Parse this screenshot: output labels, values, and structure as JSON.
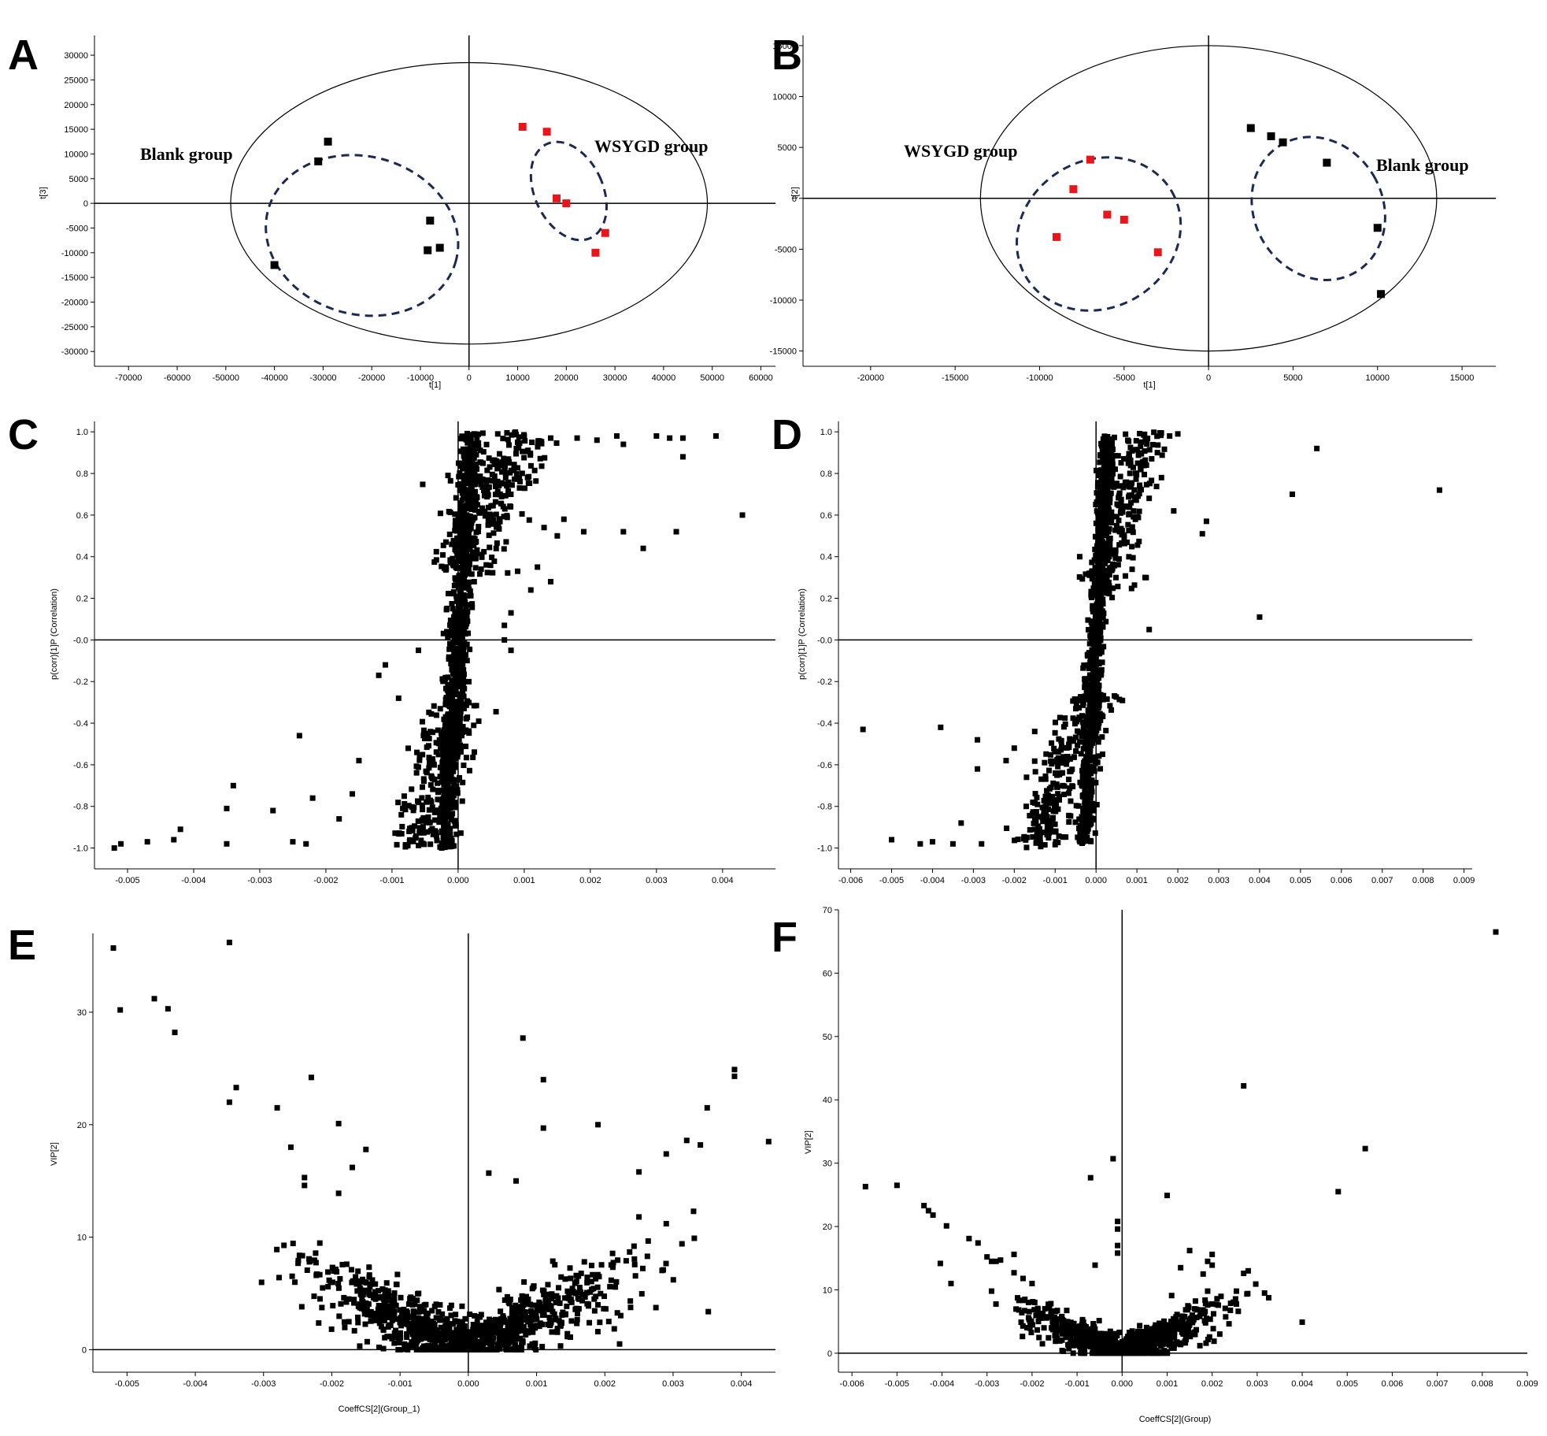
{
  "chart_data": [
    {
      "panel": "A",
      "type": "scatter",
      "xlabel": "t[1]",
      "ylabel": "t[3]",
      "xlim": [
        -77000,
        63000
      ],
      "ylim": [
        -33000,
        34000
      ],
      "xticks": [
        -70000,
        -60000,
        -50000,
        -40000,
        -30000,
        -20000,
        -10000,
        0,
        10000,
        20000,
        30000,
        40000,
        50000,
        60000
      ],
      "yticks": [
        -30000,
        -25000,
        -20000,
        -15000,
        -10000,
        -5000,
        0,
        5000,
        10000,
        15000,
        20000,
        25000,
        30000
      ],
      "ellipse": {
        "cx": 0,
        "cy": 0,
        "rx": 49000,
        "ry": 28500
      },
      "series": [
        {
          "name": "Blank group",
          "color": "#000000",
          "points": [
            [
              -29000,
              12500
            ],
            [
              -31000,
              8500
            ],
            [
              -40000,
              -12500
            ],
            [
              -8000,
              -3500
            ],
            [
              -8500,
              -9500
            ],
            [
              -6000,
              -9000
            ]
          ]
        },
        {
          "name": "WSYGD group",
          "color": "#e8161b",
          "points": [
            [
              11000,
              15500
            ],
            [
              16000,
              14500
            ],
            [
              18000,
              1000
            ],
            [
              20000,
              0
            ],
            [
              28000,
              -6000
            ],
            [
              26000,
              -10000
            ]
          ]
        }
      ],
      "groups": [
        {
          "label": "Blank group",
          "cx": -22000,
          "cy": -6500,
          "rx": 20000,
          "ry": 32000,
          "angle": 15
        },
        {
          "label": "WSYGD group",
          "cx": 20500,
          "cy": 2500,
          "rx": 7000,
          "ry": 21000,
          "angle": -25
        }
      ]
    },
    {
      "panel": "B",
      "type": "scatter",
      "xlabel": "t[1]",
      "ylabel": "t[2]",
      "xlim": [
        -24000,
        17000
      ],
      "ylim": [
        -16500,
        16000
      ],
      "xticks": [
        -20000,
        -15000,
        -10000,
        -5000,
        0,
        5000,
        10000,
        15000
      ],
      "yticks": [
        -15000,
        -10000,
        -5000,
        0,
        5000,
        10000,
        15000
      ],
      "ellipse": {
        "cx": 0,
        "cy": 0,
        "rx": 13500,
        "ry": 15000
      },
      "series": [
        {
          "name": "WSYGD group",
          "color": "#e8161b",
          "points": [
            [
              -7000,
              3800
            ],
            [
              -8000,
              900
            ],
            [
              -6000,
              -1600
            ],
            [
              -5000,
              -2100
            ],
            [
              -9000,
              -3800
            ],
            [
              -3000,
              -5300
            ]
          ]
        },
        {
          "name": "Blank group",
          "color": "#000000",
          "points": [
            [
              2500,
              6900
            ],
            [
              3700,
              6100
            ],
            [
              4400,
              5500
            ],
            [
              7000,
              3500
            ],
            [
              10000,
              -2900
            ],
            [
              10200,
              -9400
            ]
          ]
        }
      ],
      "groups": [
        {
          "label": "WSYGD group",
          "cx": -6500,
          "cy": -3500,
          "rx": 5000,
          "ry": 14500,
          "angle": -30
        },
        {
          "label": "Blank group",
          "cx": 6500,
          "cy": -1000,
          "rx": 3800,
          "ry": 14500,
          "angle": -30
        }
      ]
    },
    {
      "panel": "C",
      "type": "scatter",
      "xlabel": "",
      "ylabel": "p(corr)[1]P (Correlation)",
      "xlim": [
        -0.0055,
        0.0048
      ],
      "ylim": [
        -1.1,
        1.05
      ],
      "xticks": [
        -0.005,
        -0.004,
        -0.003,
        -0.002,
        -0.001,
        0.0,
        0.001,
        0.002,
        0.003,
        0.004
      ],
      "xtick_labels": [
        "-0.005",
        "-0.004",
        "-0.003",
        "-0.002",
        "-0.001",
        "0.000",
        "0.001",
        "0.002",
        "0.003",
        "0.004"
      ],
      "yticks": [
        -1.0,
        -0.8,
        -0.6,
        -0.4,
        -0.2,
        0.0,
        0.2,
        0.4,
        0.6,
        0.8,
        1.0
      ],
      "ytick_labels": [
        "-1.0",
        "-0.8",
        "-0.6",
        "-0.4",
        "-0.2",
        "-0.0",
        "0.2",
        "0.4",
        "0.6",
        "0.8",
        "1.0"
      ],
      "points": [
        [
          -0.0052,
          -1.0
        ],
        [
          -0.0051,
          -0.98
        ],
        [
          -0.0047,
          -0.97
        ],
        [
          -0.0043,
          -0.96
        ],
        [
          -0.0042,
          -0.91
        ],
        [
          -0.0035,
          -0.81
        ],
        [
          -0.0034,
          -0.7
        ],
        [
          -0.0035,
          -0.98
        ],
        [
          -0.0028,
          -0.82
        ],
        [
          -0.0025,
          -0.97
        ],
        [
          -0.0023,
          -0.98
        ],
        [
          -0.0022,
          -0.76
        ],
        [
          -0.0024,
          -0.46
        ],
        [
          -0.0018,
          -0.86
        ],
        [
          -0.0016,
          -0.74
        ],
        [
          -0.0015,
          -0.58
        ],
        [
          -0.0012,
          -0.17
        ],
        [
          -0.0011,
          -0.12
        ],
        [
          -0.0009,
          -0.28
        ],
        [
          -0.0006,
          -0.05
        ],
        [
          0.0006,
          0.99
        ],
        [
          0.001,
          0.98
        ],
        [
          0.0014,
          0.97
        ],
        [
          0.0018,
          0.97
        ],
        [
          0.0021,
          0.96
        ],
        [
          0.0024,
          0.98
        ],
        [
          0.0025,
          0.94
        ],
        [
          0.003,
          0.98
        ],
        [
          0.0032,
          0.97
        ],
        [
          0.0034,
          0.97
        ],
        [
          0.0039,
          0.98
        ],
        [
          0.0034,
          0.88
        ],
        [
          0.0043,
          0.6
        ],
        [
          0.0025,
          0.52
        ],
        [
          0.0028,
          0.44
        ],
        [
          0.0033,
          0.52
        ],
        [
          0.0019,
          0.52
        ],
        [
          0.0015,
          0.5
        ],
        [
          0.0013,
          0.54
        ],
        [
          0.0016,
          0.58
        ],
        [
          0.0012,
          0.35
        ],
        [
          0.0014,
          0.28
        ],
        [
          0.0011,
          0.24
        ],
        [
          0.0009,
          0.33
        ],
        [
          0.0008,
          0.13
        ],
        [
          0.0007,
          0.07
        ],
        [
          0.0007,
          0.0
        ],
        [
          0.0008,
          -0.05
        ]
      ],
      "clouds": [
        {
          "x0": -0.0002,
          "y0": -1.0,
          "x1": 0.0002,
          "y1": 1.0,
          "spread": 8e-05,
          "n": 900
        },
        {
          "x0": -0.0007,
          "y0": -1.0,
          "x1": 0.0,
          "y1": -0.3,
          "spread": 0.0002,
          "n": 220
        },
        {
          "x0": 0.0,
          "y0": 0.3,
          "x1": 0.0009,
          "y1": 1.0,
          "spread": 0.00025,
          "n": 260
        }
      ]
    },
    {
      "panel": "D",
      "type": "scatter",
      "xlabel": "",
      "ylabel": "p(corr)[1]P (Correlation)",
      "xlim": [
        -0.0063,
        0.0092
      ],
      "ylim": [
        -1.1,
        1.05
      ],
      "xticks": [
        -0.006,
        -0.005,
        -0.004,
        -0.003,
        -0.002,
        -0.001,
        0.0,
        0.001,
        0.002,
        0.003,
        0.004,
        0.005,
        0.006,
        0.007,
        0.008,
        0.009
      ],
      "xtick_labels": [
        "-0.006",
        "-0.005",
        "-0.004",
        "-0.003",
        "-0.002",
        "-0.001",
        "0.000",
        "0.001",
        "0.002",
        "0.003",
        "0.004",
        "0.005",
        "0.006",
        "0.007",
        "0.008",
        "0.009"
      ],
      "yticks": [
        -1.0,
        -0.8,
        -0.6,
        -0.4,
        -0.2,
        0.0,
        0.2,
        0.4,
        0.6,
        0.8,
        1.0
      ],
      "ytick_labels": [
        "-1.0",
        "-0.8",
        "-0.6",
        "-0.4",
        "-0.2",
        "-0.0",
        "0.2",
        "0.4",
        "0.6",
        "0.8",
        "1.0"
      ],
      "points": [
        [
          -0.0057,
          -0.43
        ],
        [
          -0.0038,
          -0.42
        ],
        [
          -0.0029,
          -0.48
        ],
        [
          -0.0029,
          -0.62
        ],
        [
          -0.005,
          -0.96
        ],
        [
          -0.0043,
          -0.98
        ],
        [
          -0.004,
          -0.97
        ],
        [
          -0.0035,
          -0.98
        ],
        [
          -0.0033,
          -0.88
        ],
        [
          -0.0028,
          -0.98
        ],
        [
          -0.0022,
          -0.58
        ],
        [
          -0.002,
          -0.52
        ],
        [
          -0.0015,
          -0.44
        ],
        [
          -0.0017,
          -0.66
        ],
        [
          0.0084,
          0.72
        ],
        [
          0.0054,
          0.92
        ],
        [
          0.0048,
          0.7
        ],
        [
          0.004,
          0.11
        ],
        [
          0.0027,
          0.57
        ],
        [
          0.0026,
          0.51
        ],
        [
          0.002,
          0.99
        ],
        [
          0.0018,
          0.98
        ],
        [
          0.0019,
          0.62
        ],
        [
          0.0015,
          0.9
        ],
        [
          0.0016,
          0.78
        ],
        [
          0.0012,
          0.3
        ],
        [
          0.0013,
          0.05
        ],
        [
          -0.0004,
          0.4
        ]
      ],
      "clouds": [
        {
          "x0": -0.0003,
          "y0": -0.98,
          "x1": 0.0003,
          "y1": 0.98,
          "spread": 0.0001,
          "n": 900
        },
        {
          "x0": -0.0015,
          "y0": -1.0,
          "x1": -0.0001,
          "y1": -0.25,
          "spread": 0.0003,
          "n": 260
        },
        {
          "x0": 0.0002,
          "y0": 0.2,
          "x1": 0.0012,
          "y1": 1.0,
          "spread": 0.00025,
          "n": 200
        }
      ]
    },
    {
      "panel": "E",
      "type": "scatter",
      "xlabel": "CoeffCS[2](Group_1)",
      "ylabel": "VIP[2]",
      "xlim": [
        -0.0055,
        0.0045
      ],
      "ylim": [
        -2,
        37
      ],
      "xticks": [
        -0.005,
        -0.004,
        -0.003,
        -0.002,
        -0.001,
        0.0,
        0.001,
        0.002,
        0.003,
        0.004
      ],
      "xtick_labels": [
        "-0.005",
        "-0.004",
        "-0.003",
        "-0.002",
        "-0.001",
        "0.000",
        "0.001",
        "0.002",
        "0.003",
        "0.004"
      ],
      "yticks": [
        0,
        10,
        20,
        30
      ],
      "ytick_labels": [
        "0",
        "10",
        "20",
        "30"
      ],
      "points": [
        [
          -0.0052,
          35.7
        ],
        [
          -0.0051,
          30.2
        ],
        [
          -0.0046,
          31.2
        ],
        [
          -0.0044,
          30.3
        ],
        [
          -0.0043,
          28.2
        ],
        [
          -0.0035,
          36.2
        ],
        [
          -0.0035,
          22.0
        ],
        [
          -0.0034,
          23.3
        ],
        [
          -0.0028,
          21.5
        ],
        [
          -0.0026,
          18.0
        ],
        [
          -0.0024,
          15.3
        ],
        [
          -0.0024,
          14.6
        ],
        [
          -0.0023,
          24.2
        ],
        [
          -0.0019,
          20.1
        ],
        [
          -0.0017,
          16.2
        ],
        [
          -0.0015,
          17.8
        ],
        [
          -0.0019,
          13.9
        ],
        [
          0.0008,
          27.7
        ],
        [
          0.0011,
          24.0
        ],
        [
          0.0011,
          19.7
        ],
        [
          0.0019,
          20.0
        ],
        [
          0.0039,
          24.9
        ],
        [
          0.0039,
          24.3
        ],
        [
          0.0044,
          18.5
        ],
        [
          0.0035,
          21.5
        ],
        [
          0.0032,
          18.6
        ],
        [
          0.0034,
          18.2
        ],
        [
          0.0029,
          17.4
        ],
        [
          0.0033,
          12.3
        ],
        [
          0.0029,
          11.2
        ],
        [
          0.0025,
          11.8
        ],
        [
          0.0025,
          15.8
        ],
        [
          0.0003,
          15.7
        ],
        [
          0.0007,
          15.0
        ]
      ],
      "clouds": [
        {
          "vshape": true,
          "n": 1100,
          "k": 3300
        }
      ]
    },
    {
      "panel": "F",
      "type": "scatter",
      "xlabel": "CoeffCS[2](Group)",
      "ylabel": "VIP[2]",
      "xlim": [
        -0.0063,
        0.009
      ],
      "ylim": [
        -3,
        70
      ],
      "xticks": [
        -0.006,
        -0.005,
        -0.004,
        -0.003,
        -0.002,
        -0.001,
        0.0,
        0.001,
        0.002,
        0.003,
        0.004,
        0.005,
        0.006,
        0.007,
        0.008,
        0.009
      ],
      "xtick_labels": [
        "-0.006",
        "-0.005",
        "-0.004",
        "-0.003",
        "-0.002",
        "-0.001",
        "0.000",
        "0.001",
        "0.002",
        "0.003",
        "0.004",
        "0.005",
        "0.006",
        "0.007",
        "0.008",
        "0.009"
      ],
      "yticks": [
        0,
        10,
        20,
        30,
        40,
        50,
        60,
        70
      ],
      "ytick_labels": [
        "0",
        "10",
        "20",
        "30",
        "40",
        "50",
        "60",
        "70"
      ],
      "points": [
        [
          0.0083,
          66.5
        ],
        [
          0.0027,
          42.2
        ],
        [
          0.0054,
          32.3
        ],
        [
          0.0048,
          25.5
        ],
        [
          0.001,
          24.9
        ],
        [
          0.004,
          4.9
        ],
        [
          -0.0057,
          26.3
        ],
        [
          -0.005,
          26.5
        ],
        [
          -0.0043,
          22.5
        ],
        [
          -0.0044,
          23.3
        ],
        [
          -0.0042,
          21.8
        ],
        [
          -0.0039,
          20.1
        ],
        [
          -0.0038,
          11.0
        ],
        [
          -0.0034,
          18.1
        ],
        [
          -0.0032,
          17.4
        ],
        [
          -0.003,
          15.2
        ],
        [
          -0.0029,
          14.5
        ],
        [
          -0.0028,
          14.5
        ],
        [
          -0.0027,
          14.7
        ],
        [
          -0.0029,
          9.8
        ],
        [
          -0.0024,
          15.6
        ],
        [
          -0.0024,
          12.7
        ],
        [
          -0.0022,
          11.8
        ],
        [
          -0.002,
          11.0
        ],
        [
          -0.0007,
          27.7
        ],
        [
          -0.0002,
          30.7
        ],
        [
          -0.0001,
          20.8
        ],
        [
          -0.0001,
          19.6
        ],
        [
          -0.0001,
          17.0
        ],
        [
          -0.0001,
          15.8
        ],
        [
          -0.0006,
          13.9
        ],
        [
          0.0028,
          13.0
        ],
        [
          0.0027,
          12.6
        ],
        [
          0.002,
          15.6
        ],
        [
          0.0019,
          14.5
        ],
        [
          0.002,
          13.9
        ],
        [
          0.0018,
          12.5
        ],
        [
          0.0019,
          9.8
        ],
        [
          0.0015,
          16.2
        ],
        [
          0.0013,
          13.5
        ],
        [
          0.0011,
          9.1
        ]
      ],
      "clouds": [
        {
          "vshape": true,
          "n": 900,
          "k": 3400
        }
      ]
    }
  ]
}
